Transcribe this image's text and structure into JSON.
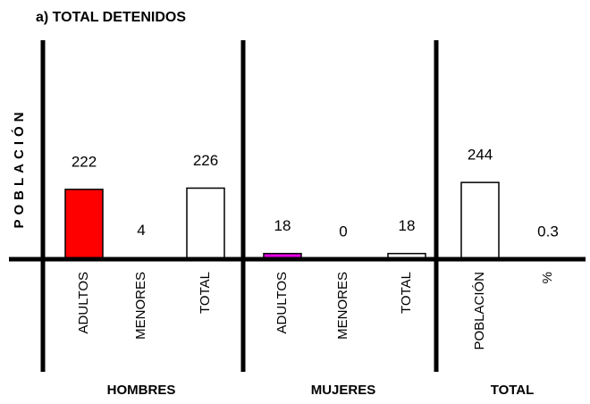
{
  "chart_data": {
    "type": "bar",
    "title": "a) TOTAL DETENIDOS",
    "ylabel": "POBLACIÓN",
    "ylim": [
      0,
      540
    ],
    "groups": [
      {
        "name": "HOMBRES",
        "categories": [
          "ADULTOS",
          "MENORES",
          "TOTAL"
        ],
        "values": [
          222,
          4,
          226
        ],
        "colors": [
          "#ff0000",
          "#f5b800",
          "#ffffff"
        ]
      },
      {
        "name": "MUJERES",
        "categories": [
          "ADULTOS",
          "MENORES",
          "TOTAL"
        ],
        "values": [
          18,
          0,
          18
        ],
        "colors": [
          "#e600e6",
          "#ffffff",
          "#ffffff"
        ]
      },
      {
        "name": "TOTAL",
        "categories": [
          "POBLACIÓN",
          "%"
        ],
        "values": [
          244,
          0.3
        ],
        "colors": [
          "#ffffff",
          "#ffffff"
        ]
      }
    ]
  }
}
